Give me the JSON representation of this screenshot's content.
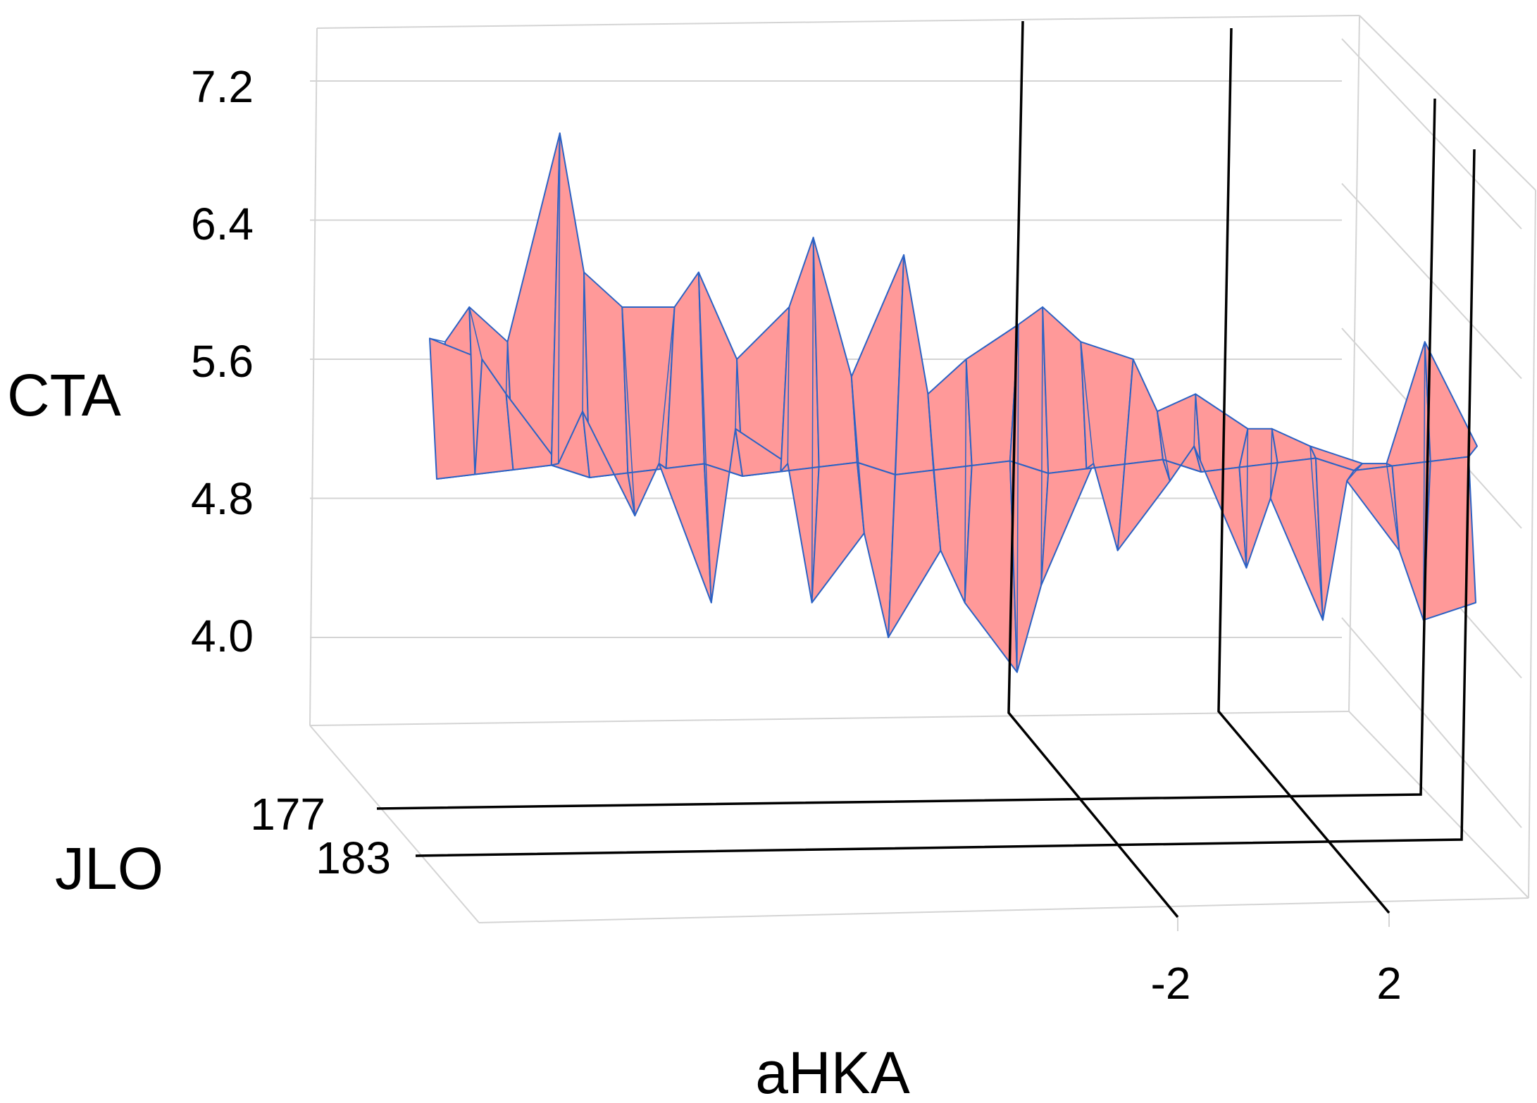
{
  "chart_data": {
    "type": "surface3d",
    "title": "",
    "axes": {
      "x": {
        "label": "aHKA",
        "ticks": [
          "-2",
          "2"
        ]
      },
      "y": {
        "label": "JLO",
        "ticks": [
          "177",
          "183"
        ]
      },
      "z": {
        "label": "CTA",
        "ticks": [
          "7.2",
          "6.4",
          "5.6",
          "4.8",
          "4.0"
        ],
        "range": [
          3.5,
          7.5
        ]
      }
    },
    "grid": true,
    "colors": {
      "surface_fill": "#ff9999",
      "surface_edge": "#2c62c4",
      "frame": "#000000",
      "grid": "#d4d4d4"
    },
    "surface_profile": {
      "description_axis": "aHKA left to right",
      "front_values": [
        5.72,
        5.6,
        5.4,
        5.0,
        5.3,
        4.7,
        5.0,
        4.2,
        5.2,
        5.0,
        4.2,
        4.6,
        4.0,
        4.5,
        4.2,
        3.8,
        4.3,
        5.0,
        4.5,
        4.9,
        5.1,
        4.4,
        4.8,
        4.1,
        4.9,
        4.5,
        4.1,
        4.2
      ],
      "back_values": [
        5.7,
        5.9,
        5.7,
        6.9,
        6.1,
        5.9,
        5.9,
        6.1,
        5.6,
        5.9,
        6.3,
        5.5,
        6.2,
        5.4,
        5.6,
        5.8,
        5.9,
        5.7,
        5.6,
        5.3,
        5.4,
        5.2,
        5.2,
        5.1,
        5.0,
        5.0,
        5.7,
        5.1
      ],
      "peaks": [
        6.9,
        6.3,
        6.2,
        5.9,
        5.6
      ],
      "troughs": [
        3.5,
        3.7,
        4.0,
        4.2
      ]
    }
  }
}
